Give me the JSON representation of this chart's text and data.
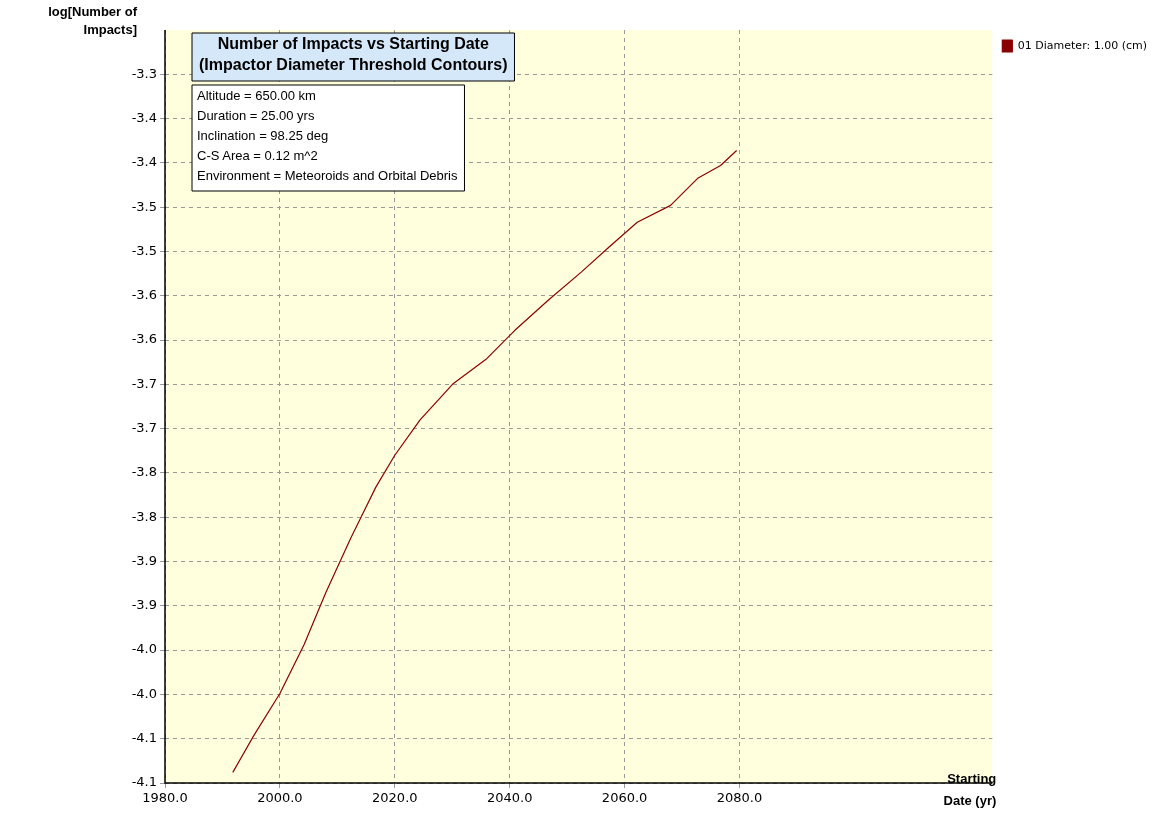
{
  "chart_data": {
    "type": "line",
    "title": "Number of Impacts vs Starting Date\n(Impactor Diameter Threshold Contours)",
    "xlabel": "Starting\nDate (yr)",
    "ylabel": "log[Number of\nImpacts]",
    "annotations": [
      "Altitude = 650.00 km",
      "Duration = 25.00 yrs",
      "Inclination = 98.25 deg",
      "C-S Area = 0.12 m^2",
      "Environment = Meteoroids and Orbital Debris"
    ],
    "series": [
      {
        "name": "01 Diameter: 1.00 (cm)",
        "color": "#8b0000",
        "x": [
          1991.8,
          1995.5,
          2000,
          2004.2,
          2008,
          2012.3,
          2016.7,
          2020,
          2024.4,
          2030.2,
          2036,
          2040.9,
          2046.7,
          2052.5,
          2057.3,
          2062.2,
          2068,
          2072.8,
          2076.7,
          2079.5
        ],
        "values": [
          -4.088,
          -4.046,
          -3.999,
          -3.944,
          -3.885,
          -3.824,
          -3.766,
          -3.73,
          -3.69,
          -3.649,
          -3.621,
          -3.589,
          -3.555,
          -3.523,
          -3.495,
          -3.467,
          -3.448,
          -3.417,
          -3.403,
          -3.386
        ]
      }
    ],
    "xlim": [
      1980,
      2124
    ],
    "xticks": [
      {
        "value": 1980,
        "label": "1980.0"
      },
      {
        "value": 2000,
        "label": "2000.0"
      },
      {
        "value": 2020,
        "label": "2020.0"
      },
      {
        "value": 2040,
        "label": "2040.0"
      },
      {
        "value": 2060,
        "label": "2060.0"
      },
      {
        "value": 2080,
        "label": "2080.0"
      }
    ],
    "ylim": [
      -4.1,
      -3.25
    ],
    "yticks": [
      {
        "value": -4.1,
        "label": "-4.1"
      },
      {
        "value": -4.05,
        "label": "-4.1"
      },
      {
        "value": -4.0,
        "label": "-4.0"
      },
      {
        "value": -3.95,
        "label": "-4.0"
      },
      {
        "value": -3.9,
        "label": "-3.9"
      },
      {
        "value": -3.85,
        "label": "-3.9"
      },
      {
        "value": -3.8,
        "label": "-3.8"
      },
      {
        "value": -3.75,
        "label": "-3.8"
      },
      {
        "value": -3.7,
        "label": "-3.7"
      },
      {
        "value": -3.65,
        "label": "-3.7"
      },
      {
        "value": -3.6,
        "label": "-3.6"
      },
      {
        "value": -3.55,
        "label": "-3.6"
      },
      {
        "value": -3.5,
        "label": "-3.5"
      },
      {
        "value": -3.45,
        "label": "-3.5"
      },
      {
        "value": -3.4,
        "label": "-3.4"
      },
      {
        "value": -3.35,
        "label": "-3.4"
      },
      {
        "value": -3.3,
        "label": "-3.3"
      }
    ],
    "grid": true,
    "legend": "top right",
    "marker": "none",
    "line_style": "solid"
  }
}
